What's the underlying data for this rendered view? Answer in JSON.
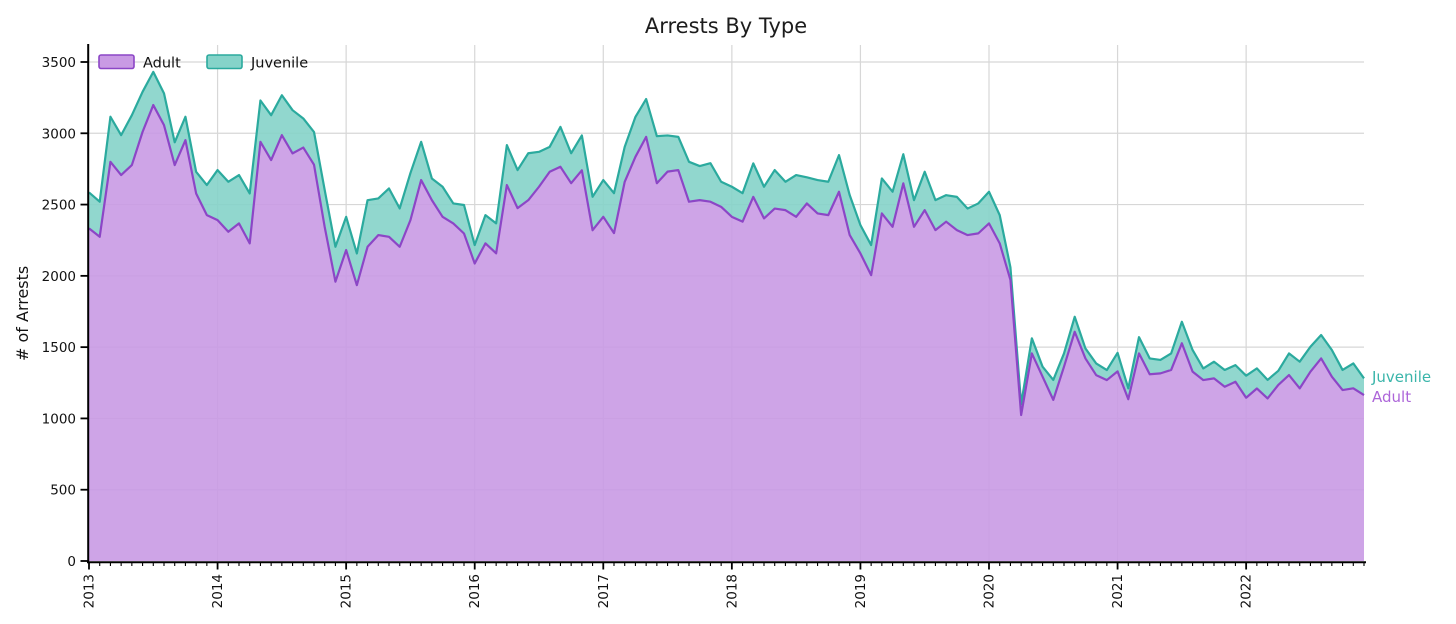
{
  "title": "Arrests By Type",
  "ylabel": "# of Arrests",
  "legend": {
    "adult_label": "Adult",
    "juvenile_label": "Juvenile"
  },
  "end_labels": {
    "juvenile": "Juvenile",
    "adult": "Adult"
  },
  "colors": {
    "adult_fill": "#c99ae4",
    "adult_line": "#8c46c6",
    "juvenile_fill": "#85d3c9",
    "juvenile_line": "#2baa9e",
    "grid": "#d7d7d7",
    "axis": "#000000",
    "end_label_juvenile": "#3ab5aa",
    "end_label_adult": "#ad66d9"
  },
  "chart_data": {
    "type": "area",
    "stacked": true,
    "title": "Arrests By Type",
    "xlabel": "",
    "ylabel": "# of Arrests",
    "grid": true,
    "legend_position": "upper left",
    "x_start": "2013-01",
    "x_end": "2022-12",
    "points_per_year": 12,
    "x_tick_labels": [
      "2013",
      "2014",
      "2015",
      "2016",
      "2017",
      "2018",
      "2019",
      "2020",
      "2021",
      "2022"
    ],
    "y_ticks": [
      0,
      500,
      1000,
      1500,
      2000,
      2500,
      3000,
      3500
    ],
    "ylim": [
      0,
      3620
    ],
    "series": [
      {
        "name": "Adult",
        "values": [
          2333,
          2274,
          2800,
          2707,
          2777,
          3010,
          3198,
          3057,
          2777,
          2952,
          2578,
          2426,
          2391,
          2309,
          2368,
          2228,
          2940,
          2812,
          2987,
          2859,
          2900,
          2780,
          2342,
          1959,
          2181,
          1935,
          2204,
          2286,
          2274,
          2204,
          2391,
          2672,
          2531,
          2414,
          2368,
          2297,
          2087,
          2228,
          2158,
          2637,
          2475,
          2531,
          2625,
          2730,
          2765,
          2650,
          2740,
          2320,
          2414,
          2300,
          2660,
          2835,
          2975,
          2650,
          2731,
          2742,
          2520,
          2531,
          2520,
          2484,
          2414,
          2380,
          2554,
          2403,
          2472,
          2461,
          2414,
          2508,
          2438,
          2426,
          2590,
          2286,
          2157,
          2005,
          2438,
          2344,
          2649,
          2344,
          2461,
          2321,
          2380,
          2321,
          2286,
          2298,
          2368,
          2228,
          1971,
          1024,
          1456,
          1293,
          1130,
          1363,
          1608,
          1421,
          1304,
          1269,
          1330,
          1135,
          1456,
          1310,
          1316,
          1340,
          1527,
          1328,
          1269,
          1281,
          1222,
          1257,
          1145,
          1210,
          1140,
          1235,
          1304,
          1211,
          1328,
          1421,
          1293,
          1199,
          1211,
          1164
        ]
      },
      {
        "name": "Juvenile",
        "values": [
          252,
          246,
          316,
          280,
          350,
          281,
          233,
          223,
          160,
          164,
          152,
          211,
          351,
          351,
          339,
          350,
          290,
          315,
          280,
          303,
          204,
          229,
          260,
          245,
          233,
          222,
          327,
          257,
          339,
          269,
          330,
          268,
          152,
          211,
          140,
          200,
          129,
          198,
          210,
          280,
          267,
          329,
          245,
          175,
          280,
          210,
          245,
          235,
          258,
          280,
          245,
          280,
          265,
          330,
          254,
          233,
          280,
          239,
          270,
          176,
          211,
          200,
          235,
          222,
          270,
          199,
          293,
          183,
          234,
          234,
          257,
          280,
          199,
          211,
          245,
          246,
          204,
          187,
          269,
          210,
          186,
          233,
          186,
          210,
          222,
          198,
          89,
          76,
          106,
          70,
          140,
          93,
          105,
          70,
          82,
          70,
          130,
          76,
          114,
          111,
          94,
          116,
          151,
          152,
          82,
          117,
          118,
          117,
          155,
          141,
          130,
          99,
          152,
          187,
          175,
          164,
          187,
          141,
          175,
          117
        ]
      }
    ]
  }
}
